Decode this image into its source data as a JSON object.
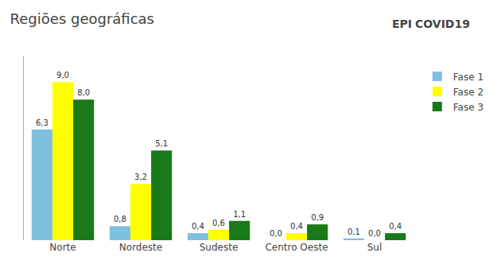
{
  "chart_data": {
    "type": "bar",
    "title": "Regiões geográficas",
    "categories": [
      "Norte",
      "Nordeste",
      "Sudeste",
      "Centro Oeste",
      "Sul"
    ],
    "series": [
      {
        "name": "Fase 1",
        "color": "#7fbfdf",
        "values": [
          6.3,
          0.8,
          0.4,
          0.0,
          0.1
        ],
        "value_labels": [
          "6,3",
          "0,8",
          "0,4",
          "0,0",
          "0,1"
        ]
      },
      {
        "name": "Fase 2",
        "color": "#ffff00",
        "values": [
          9.0,
          3.2,
          0.6,
          0.4,
          0.0
        ],
        "value_labels": [
          "9,0",
          "3,2",
          "0,6",
          "0,4",
          "0,0"
        ]
      },
      {
        "name": "Fase 3",
        "color": "#1a7a1a",
        "values": [
          8.0,
          5.1,
          1.1,
          0.9,
          0.4
        ],
        "value_labels": [
          "8,0",
          "5,1",
          "1,1",
          "0,9",
          "0,4"
        ]
      }
    ],
    "ylim": [
      0,
      10.5
    ],
    "grid": false,
    "legend": "right",
    "data_labels": true,
    "tick_labels": "x",
    "annotations": [
      "EPI",
      "COVID19"
    ]
  }
}
